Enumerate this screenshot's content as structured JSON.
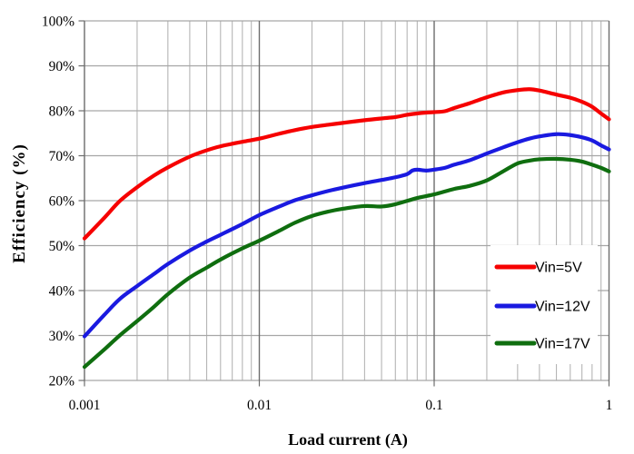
{
  "chart_data": {
    "type": "line",
    "title": "",
    "xlabel": "Load current (A)",
    "ylabel": "Efficiency (%)",
    "x_scale": "log10",
    "xlim": [
      0.001,
      1
    ],
    "ylim": [
      20,
      100
    ],
    "grid": true,
    "x_ticks": {
      "values": [
        0.001,
        0.01,
        0.1,
        1
      ],
      "labels": [
        "0.001",
        "0.01",
        "0.1",
        "1"
      ]
    },
    "y_ticks": {
      "values": [
        20,
        30,
        40,
        50,
        60,
        70,
        80,
        90,
        100
      ],
      "labels": [
        "20%",
        "30%",
        "40%",
        "50%",
        "60%",
        "70%",
        "80%",
        "90%",
        "100%"
      ]
    },
    "legend": {
      "position": "inside-bottom-right",
      "background": "#ffffff"
    },
    "style": {
      "minor_grid_color": "#b5b5b5",
      "major_grid_color": "#6d6d6d",
      "h_grid_color": "#a6a6a6",
      "axis_color": "#6d6d6d",
      "text_color": "#000000"
    },
    "series": [
      {
        "name": "Vin=5V",
        "color": "#f60000",
        "points": [
          [
            0.001,
            51.6
          ],
          [
            0.0013,
            56.2
          ],
          [
            0.0016,
            60.0
          ],
          [
            0.002,
            63.0
          ],
          [
            0.0025,
            65.6
          ],
          [
            0.003,
            67.4
          ],
          [
            0.004,
            69.8
          ],
          [
            0.005,
            71.2
          ],
          [
            0.006,
            72.1
          ],
          [
            0.008,
            73.1
          ],
          [
            0.01,
            73.8
          ],
          [
            0.013,
            74.9
          ],
          [
            0.016,
            75.7
          ],
          [
            0.02,
            76.4
          ],
          [
            0.025,
            76.9
          ],
          [
            0.03,
            77.3
          ],
          [
            0.04,
            77.9
          ],
          [
            0.05,
            78.3
          ],
          [
            0.06,
            78.6
          ],
          [
            0.07,
            79.1
          ],
          [
            0.08,
            79.4
          ],
          [
            0.09,
            79.6
          ],
          [
            0.1,
            79.7
          ],
          [
            0.115,
            79.9
          ],
          [
            0.13,
            80.6
          ],
          [
            0.16,
            81.7
          ],
          [
            0.2,
            83.0
          ],
          [
            0.25,
            84.1
          ],
          [
            0.3,
            84.6
          ],
          [
            0.35,
            84.8
          ],
          [
            0.4,
            84.5
          ],
          [
            0.5,
            83.6
          ],
          [
            0.6,
            82.9
          ],
          [
            0.7,
            82.0
          ],
          [
            0.8,
            80.9
          ],
          [
            0.9,
            79.4
          ],
          [
            1.0,
            78.1
          ]
        ]
      },
      {
        "name": "Vin=12V",
        "color": "#1a1ae0",
        "points": [
          [
            0.001,
            29.8
          ],
          [
            0.0013,
            34.6
          ],
          [
            0.0016,
            38.2
          ],
          [
            0.002,
            41.0
          ],
          [
            0.0025,
            43.7
          ],
          [
            0.003,
            45.9
          ],
          [
            0.004,
            48.9
          ],
          [
            0.005,
            50.9
          ],
          [
            0.006,
            52.4
          ],
          [
            0.008,
            54.8
          ],
          [
            0.01,
            56.8
          ],
          [
            0.013,
            58.7
          ],
          [
            0.016,
            60.1
          ],
          [
            0.02,
            61.2
          ],
          [
            0.025,
            62.2
          ],
          [
            0.03,
            62.9
          ],
          [
            0.04,
            63.9
          ],
          [
            0.05,
            64.6
          ],
          [
            0.06,
            65.2
          ],
          [
            0.07,
            65.9
          ],
          [
            0.075,
            66.7
          ],
          [
            0.08,
            66.9
          ],
          [
            0.09,
            66.7
          ],
          [
            0.1,
            66.9
          ],
          [
            0.115,
            67.3
          ],
          [
            0.13,
            68.0
          ],
          [
            0.16,
            69.0
          ],
          [
            0.2,
            70.5
          ],
          [
            0.25,
            71.9
          ],
          [
            0.3,
            73.0
          ],
          [
            0.35,
            73.8
          ],
          [
            0.4,
            74.3
          ],
          [
            0.5,
            74.8
          ],
          [
            0.6,
            74.6
          ],
          [
            0.7,
            74.1
          ],
          [
            0.8,
            73.4
          ],
          [
            0.9,
            72.3
          ],
          [
            1.0,
            71.4
          ]
        ]
      },
      {
        "name": "Vin=17V",
        "color": "#0f6e0f",
        "points": [
          [
            0.001,
            23.0
          ],
          [
            0.0013,
            26.9
          ],
          [
            0.0016,
            30.1
          ],
          [
            0.002,
            33.2
          ],
          [
            0.0025,
            36.4
          ],
          [
            0.003,
            39.2
          ],
          [
            0.004,
            42.9
          ],
          [
            0.005,
            45.1
          ],
          [
            0.006,
            46.9
          ],
          [
            0.008,
            49.4
          ],
          [
            0.01,
            51.1
          ],
          [
            0.013,
            53.3
          ],
          [
            0.016,
            55.1
          ],
          [
            0.02,
            56.6
          ],
          [
            0.025,
            57.6
          ],
          [
            0.03,
            58.2
          ],
          [
            0.04,
            58.8
          ],
          [
            0.05,
            58.7
          ],
          [
            0.06,
            59.2
          ],
          [
            0.08,
            60.6
          ],
          [
            0.1,
            61.4
          ],
          [
            0.13,
            62.6
          ],
          [
            0.16,
            63.3
          ],
          [
            0.2,
            64.5
          ],
          [
            0.25,
            66.6
          ],
          [
            0.3,
            68.3
          ],
          [
            0.35,
            68.9
          ],
          [
            0.4,
            69.2
          ],
          [
            0.5,
            69.3
          ],
          [
            0.6,
            69.1
          ],
          [
            0.7,
            68.7
          ],
          [
            0.8,
            68.0
          ],
          [
            0.9,
            67.3
          ],
          [
            1.0,
            66.5
          ]
        ]
      }
    ]
  }
}
